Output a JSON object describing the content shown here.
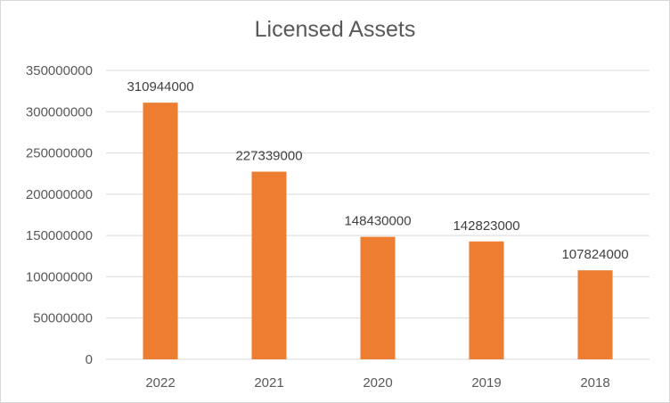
{
  "chart_data": {
    "type": "bar",
    "title": "Licensed Assets",
    "categories": [
      "2022",
      "2021",
      "2020",
      "2019",
      "2018"
    ],
    "values": [
      310944000,
      227339000,
      148430000,
      142823000,
      107824000
    ],
    "data_labels": [
      "310944000",
      "227339000",
      "148430000",
      "142823000",
      "107824000"
    ],
    "ylim": [
      0,
      350000000
    ],
    "yticks": [
      "0",
      "50000000",
      "100000000",
      "150000000",
      "200000000",
      "250000000",
      "300000000",
      "350000000"
    ],
    "xlabel": "",
    "ylabel": "",
    "grid": true,
    "legend": "none",
    "bar_color": "#ED7D31",
    "grid_color": "#D9D9D9",
    "text_color": "#595959"
  }
}
